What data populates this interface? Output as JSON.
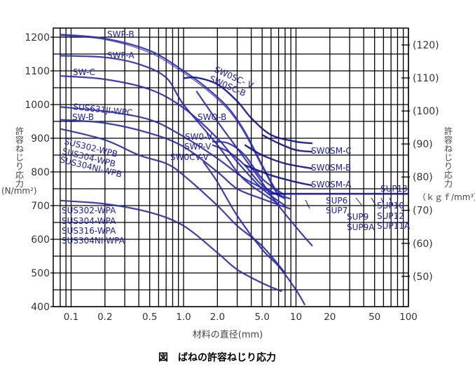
{
  "chart_data": {
    "type": "line",
    "title": "図　ばねの許容ねじり応力",
    "xlabel": "材料の直径(mm)",
    "ylabel": "許容ねじり応力 (N/mm²)",
    "ylabel_right": "許容ねじり応力 (ｋｇｆ/mm³)",
    "x_scale": "log",
    "xlim": [
      0.07,
      100
    ],
    "ylim": [
      400,
      1220
    ],
    "x_ticks": [
      "0.1",
      "0.2",
      "0.5",
      "1.0",
      "2.0",
      "5.0",
      "10",
      "20",
      "50",
      "100"
    ],
    "x_tick_values": [
      0.1,
      0.2,
      0.5,
      1.0,
      2.0,
      5.0,
      10,
      20,
      50,
      100
    ],
    "y_ticks": [
      400,
      500,
      600,
      700,
      800,
      900,
      1000,
      1100,
      1200
    ],
    "y_right_ticks": [
      "(50)",
      "(60)",
      "(70)",
      "(80)",
      "(90)",
      "(100)",
      "(110)",
      "(120)"
    ],
    "y_right_values": [
      490,
      588,
      686,
      785,
      883,
      981,
      1079,
      1177
    ],
    "grid": true,
    "series": [
      {
        "name": "SWP-B",
        "x": [
          0.08,
          0.2,
          0.5,
          1.0,
          1.6,
          2.5,
          3.5,
          5.0,
          7.0
        ],
        "y": [
          1208,
          1196,
          1160,
          1100,
          1050,
          990,
          920,
          820,
          730
        ],
        "double": true
      },
      {
        "name": "SWP-A",
        "x": [
          0.08,
          0.2,
          0.4,
          0.7,
          1.0,
          2.0,
          3.0,
          4.0,
          7.0
        ],
        "y": [
          1145,
          1140,
          1120,
          1080,
          1000,
          880,
          800,
          760,
          705
        ]
      },
      {
        "name": "SW-C",
        "x": [
          0.08,
          0.2,
          0.5,
          1.0,
          2.0,
          3.0,
          5.0,
          8.0
        ],
        "y": [
          1085,
          1075,
          1045,
          990,
          900,
          830,
          750,
          700
        ]
      },
      {
        "name": "SUS631J1-WPC",
        "x": [
          0.08,
          0.2,
          0.5,
          1.0,
          2.0,
          3.5,
          6.0,
          9.0
        ],
        "y": [
          993,
          980,
          955,
          905,
          840,
          780,
          740,
          720
        ]
      },
      {
        "name": "SW-B",
        "x": [
          0.08,
          0.2,
          0.5,
          1.0,
          2.0,
          3.0,
          5.0,
          9.0
        ],
        "y": [
          955,
          945,
          915,
          875,
          800,
          750,
          720,
          690
        ]
      },
      {
        "name": "SUS302-WPB / SUS304-WPB / SUS304NI-WPB",
        "x": [
          0.08,
          0.2,
          0.4,
          0.7,
          1.0,
          2.0,
          3.0,
          5.0,
          8.0
        ],
        "y": [
          928,
          895,
          850,
          825,
          790,
          700,
          640,
          580,
          500
        ]
      },
      {
        "name": "SUS302-WPA / SUS304-WPA / SUS316-WPA / SUS304NI-WPA",
        "x": [
          0.08,
          0.2,
          0.5,
          1.0,
          2.0,
          3.0,
          5.0,
          7.5
        ],
        "y": [
          715,
          705,
          680,
          640,
          560,
          510,
          470,
          445
        ]
      },
      {
        "name": "SW0SC-V / SW0SC-B",
        "x": [
          1.0,
          1.3,
          2.0,
          3.0,
          4.0,
          6.0,
          10,
          14
        ],
        "y": [
          1078,
          1080,
          1060,
          1010,
          960,
          910,
          890,
          885
        ]
      },
      {
        "name": "SWO-B",
        "x": [
          1.3,
          2.0,
          3.0,
          4.5,
          7.0,
          11,
          14
        ],
        "y": [
          1040,
          950,
          870,
          790,
          700,
          620,
          580
        ]
      },
      {
        "name": "SW0-V",
        "x": [
          1.8,
          2.5,
          3.5,
          5.0,
          8.0
        ],
        "y": [
          890,
          885,
          850,
          780,
          730
        ]
      },
      {
        "name": "SWP-V",
        "x": [
          1.8,
          2.5,
          3.5,
          5.0,
          8.0
        ],
        "y": [
          880,
          860,
          820,
          760,
          720
        ]
      },
      {
        "name": "SW0CV-V",
        "x": [
          1.5,
          2.0,
          3.0,
          5.0,
          7.0,
          10,
          12
        ],
        "y": [
          830,
          770,
          670,
          570,
          520,
          450,
          405
        ]
      },
      {
        "name": "SW0SM-C",
        "x": [
          5.0,
          7.0,
          10,
          14
        ],
        "y": [
          910,
          885,
          865,
          860
        ]
      },
      {
        "name": "SW0SM-B",
        "x": [
          3.5,
          5.0,
          8.0,
          14
        ],
        "y": [
          880,
          850,
          825,
          810
        ]
      },
      {
        "name": "SW0SM-A",
        "x": [
          3.5,
          6.0,
          10,
          14
        ],
        "y": [
          820,
          790,
          770,
          760
        ]
      },
      {
        "name": "SUP6/7/9/9A/10/11A/12/13",
        "x": [
          6.0,
          100
        ],
        "y": [
          735,
          735
        ]
      }
    ],
    "annotations": [
      "SWP-B",
      "SWP-A",
      "SW-C",
      "SUS631JI-WPC",
      "SW-B",
      "SUS302-WPB",
      "SUS304-WPB",
      "SUS304NI-WPB",
      "SUS302-WPA",
      "SUS304-WPA",
      "SUS316-WPA",
      "SUS304NI-WPA",
      "SW0SC- V",
      "SW0SC-B",
      "SWO-B",
      "SW0-V",
      "SWP-V",
      "SW0CV-V",
      "SW0SM-C",
      "SW0SM-B",
      "SW0SM-A",
      "SUP6",
      "SUP7",
      "SUP9",
      "SUP9A",
      "SUP10",
      "SUP12",
      "SUP11A",
      "SUP13"
    ]
  },
  "labels": {
    "y_left_jp": [
      "許",
      "容",
      "ね",
      "じ",
      "り",
      "応",
      "力"
    ],
    "y_left_unit": "(N/mm²)",
    "y_right_jp": [
      "許",
      "容",
      "ね",
      "じ",
      "り",
      "応",
      "力"
    ],
    "y_right_unit": "（ｋｇｆ/mm³）",
    "x_axis": "材料の直径(mm)",
    "caption": "図　ばねの許容ねじり応力"
  },
  "colors": {
    "curve": "#2828b8",
    "curve_dark": "#10109a",
    "label": "#1a1ab8",
    "grid": "#000000"
  }
}
